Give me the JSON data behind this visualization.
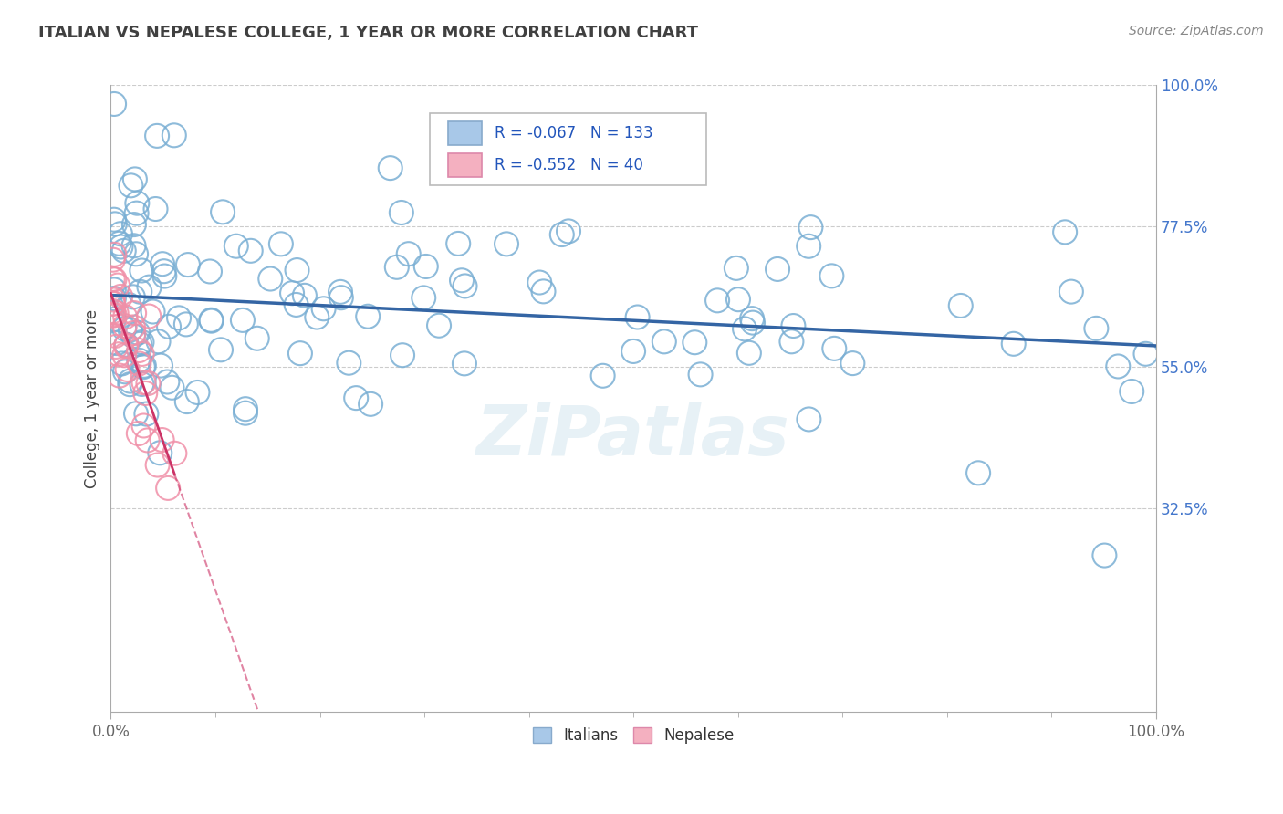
{
  "title": "ITALIAN VS NEPALESE COLLEGE, 1 YEAR OR MORE CORRELATION CHART",
  "source_text": "Source: ZipAtlas.com",
  "ylabel": "College, 1 year or more",
  "xlim": [
    0,
    100
  ],
  "ylim": [
    0,
    100
  ],
  "ytick_values": [
    32.5,
    55.0,
    77.5,
    100.0
  ],
  "ytick_labels": [
    "32.5%",
    "55.0%",
    "77.5%",
    "100.0%"
  ],
  "italian_R": -0.067,
  "italian_N": 133,
  "nepalese_R": -0.552,
  "nepalese_N": 40,
  "italian_edge_color": "#7aafd4",
  "nepalese_edge_color": "#f090a8",
  "italian_line_color": "#3465a4",
  "nepalese_line_color": "#cc3366",
  "watermark": "ZiPatlas",
  "legend_italian": "Italians",
  "legend_nepalese": "Nepalese",
  "italian_legend_color": "#a8c8e8",
  "nepalese_legend_color": "#f4b0c0",
  "title_color": "#404040",
  "source_color": "#888888",
  "ytick_color": "#4477cc",
  "xtick_color": "#666666",
  "grid_color": "#cccccc",
  "spine_color": "#aaaaaa"
}
